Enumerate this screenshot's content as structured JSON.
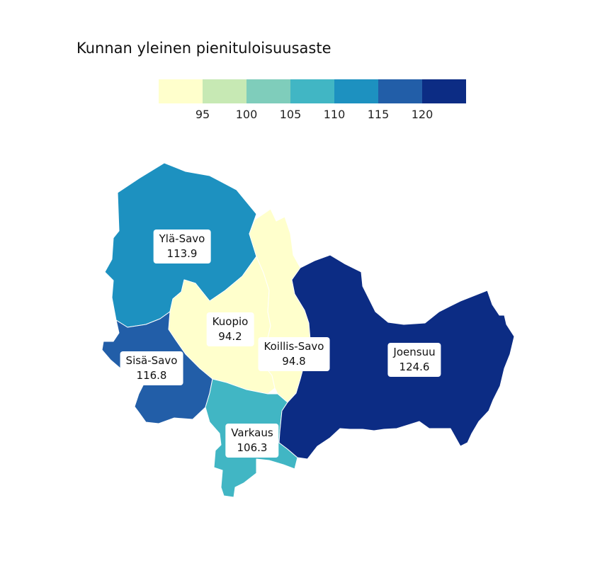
{
  "title": "Kunnan yleinen pienituloisuusaste",
  "legend": {
    "colors": [
      "#ffffcc",
      "#c7e9b4",
      "#7fcdbb",
      "#41b6c4",
      "#1d91c0",
      "#225ea8",
      "#0c2c84"
    ],
    "ticks": [
      "95",
      "100",
      "105",
      "110",
      "115",
      "120"
    ]
  },
  "regions": [
    {
      "key": "yla_savo",
      "name": "Ylä-Savo",
      "value": "113.9",
      "color": "#1d91c0"
    },
    {
      "key": "kuopio",
      "name": "Kuopio",
      "value": "94.2",
      "color": "#ffffcc"
    },
    {
      "key": "koillis_savo",
      "name": "Koillis-Savo",
      "value": "94.8",
      "color": "#ffffcc"
    },
    {
      "key": "sisa_savo",
      "name": "Sisä-Savo",
      "value": "116.8",
      "color": "#225ea8"
    },
    {
      "key": "varkaus",
      "name": "Varkaus",
      "value": "106.3",
      "color": "#41b6c4"
    },
    {
      "key": "joensuu",
      "name": "Joensuu",
      "value": "124.6",
      "color": "#0c2c84"
    }
  ]
}
